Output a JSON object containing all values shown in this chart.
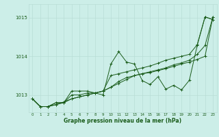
{
  "xlabel": "Graphe pression niveau de la mer (hPa)",
  "background_color": "#cceee8",
  "grid_color": "#b8ddd6",
  "line_color": "#1a5c1a",
  "x_ticks": [
    0,
    1,
    2,
    3,
    4,
    5,
    6,
    7,
    8,
    9,
    10,
    11,
    12,
    13,
    14,
    15,
    16,
    17,
    18,
    19,
    20,
    21,
    22,
    23
  ],
  "y_ticks": [
    1013,
    1014,
    1015
  ],
  "ylim": [
    1012.55,
    1015.35
  ],
  "xlim": [
    -0.5,
    23.5
  ],
  "series": [
    [
      1012.9,
      1012.7,
      1012.7,
      1012.8,
      1012.8,
      1013.1,
      1013.1,
      1013.1,
      1013.05,
      1013.0,
      1013.8,
      1014.12,
      1013.85,
      1013.8,
      1013.37,
      1013.27,
      1013.47,
      1013.15,
      1013.25,
      1013.13,
      1013.38,
      1014.28,
      1015.02,
      1014.95
    ],
    [
      1012.9,
      1012.7,
      1012.7,
      1012.8,
      1012.8,
      1013.0,
      1013.0,
      1013.05,
      1013.05,
      1013.1,
      1013.5,
      1013.55,
      1013.6,
      1013.65,
      1013.7,
      1013.75,
      1013.82,
      1013.9,
      1013.95,
      1014.0,
      1014.05,
      1014.3,
      1015.02,
      1014.95
    ],
    [
      1012.9,
      1012.7,
      1012.7,
      1012.75,
      1012.8,
      1012.9,
      1012.95,
      1013.0,
      1013.05,
      1013.1,
      1013.2,
      1013.35,
      1013.45,
      1013.5,
      1013.55,
      1013.6,
      1013.65,
      1013.7,
      1013.78,
      1013.83,
      1013.9,
      1014.05,
      1014.28,
      1015.02
    ],
    [
      1012.9,
      1012.7,
      1012.7,
      1012.75,
      1012.82,
      1012.9,
      1012.95,
      1013.0,
      1013.05,
      1013.1,
      1013.2,
      1013.3,
      1013.4,
      1013.5,
      1013.55,
      1013.58,
      1013.63,
      1013.68,
      1013.74,
      1013.8,
      1013.85,
      1013.92,
      1014.0,
      1015.02
    ]
  ]
}
